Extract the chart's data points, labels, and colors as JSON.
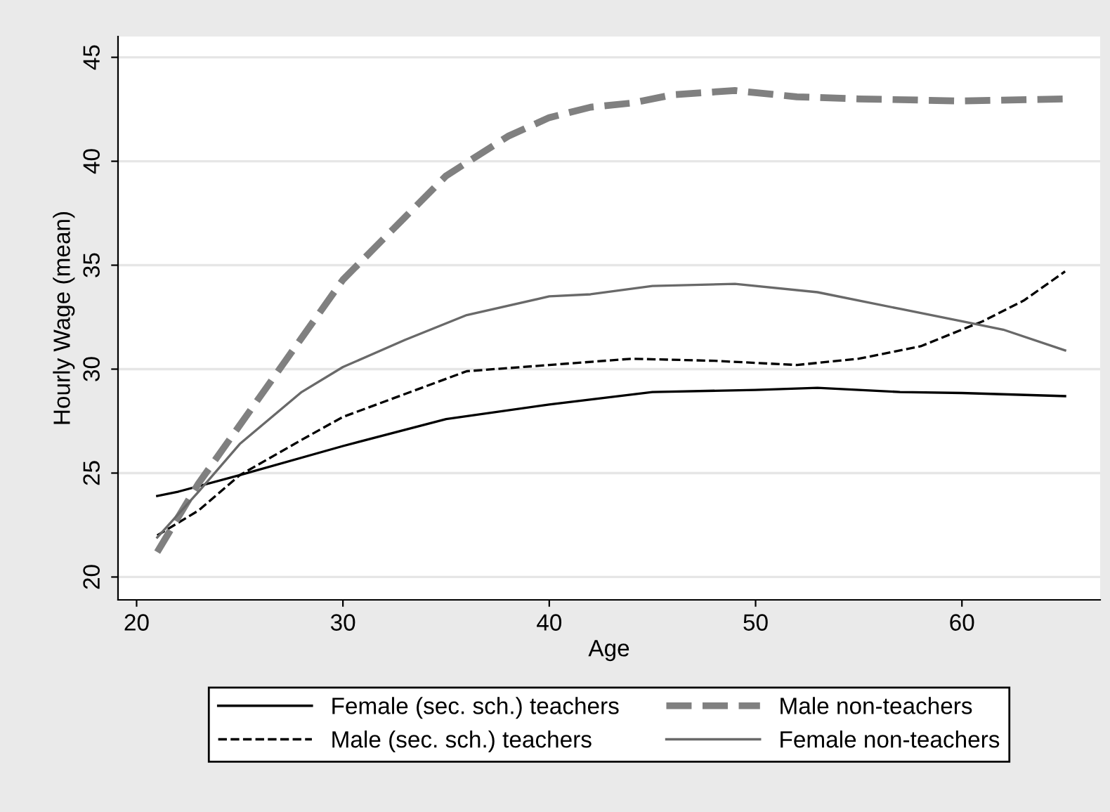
{
  "chart_data": {
    "type": "line",
    "xlabel": "Age",
    "ylabel": "Hourly Wage (mean)",
    "xlim": [
      19.1,
      66.7
    ],
    "ylim": [
      18.9,
      46.0
    ],
    "xticks": [
      20,
      30,
      40,
      50,
      60
    ],
    "yticks": [
      20,
      25,
      30,
      35,
      40,
      45
    ],
    "grid": "y",
    "legend": "bottom",
    "marker": "none",
    "series": [
      {
        "name": "Female (sec. sch.) teachers",
        "color": "#000000",
        "line_style": "solid",
        "x": [
          21,
          22,
          25,
          30,
          35,
          40,
          45,
          50,
          53,
          57,
          60,
          65
        ],
        "values": [
          23.9,
          24.1,
          24.9,
          26.3,
          27.6,
          28.3,
          28.9,
          29.0,
          29.1,
          28.9,
          28.85,
          28.7
        ]
      },
      {
        "name": "Male (sec. sch.) teachers",
        "color": "#000000",
        "line_style": "dashed",
        "x": [
          21,
          23,
          25,
          28,
          30,
          33,
          36,
          40,
          44,
          48,
          52,
          55,
          58,
          61,
          63,
          65
        ],
        "values": [
          22.0,
          23.2,
          24.9,
          26.6,
          27.7,
          28.8,
          29.9,
          30.2,
          30.5,
          30.4,
          30.2,
          30.5,
          31.1,
          32.3,
          33.3,
          34.7
        ]
      },
      {
        "name": "Male non-teachers",
        "color": "#808080",
        "line_style": "dashed",
        "x": [
          21,
          23,
          25,
          28,
          30,
          33,
          35,
          38,
          40,
          42,
          44,
          46,
          49,
          52,
          55,
          60,
          65
        ],
        "values": [
          21.2,
          24.5,
          27.3,
          31.5,
          34.3,
          37.3,
          39.3,
          41.2,
          42.1,
          42.6,
          42.8,
          43.2,
          43.4,
          43.1,
          43.0,
          42.9,
          43.0
        ]
      },
      {
        "name": "Female non-teachers",
        "color": "#696969",
        "line_style": "solid",
        "x": [
          21,
          23,
          25,
          28,
          30,
          33,
          36,
          40,
          42,
          45,
          49,
          53,
          57,
          60,
          62,
          65
        ],
        "values": [
          21.9,
          24.1,
          26.4,
          28.9,
          30.1,
          31.4,
          32.6,
          33.5,
          33.6,
          34.0,
          34.1,
          33.7,
          32.9,
          32.3,
          31.9,
          30.9
        ]
      }
    ]
  }
}
